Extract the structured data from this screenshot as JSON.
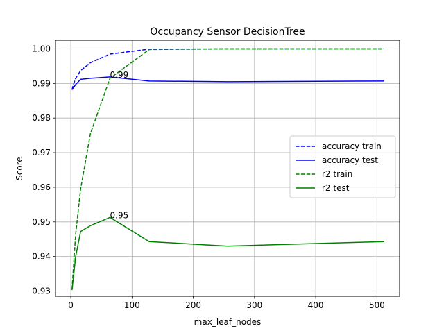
{
  "chart_data": {
    "type": "line",
    "title": "Occupancy Sensor DecisionTree",
    "xlabel": "max_leaf_nodes",
    "ylabel": "Score",
    "xlim": [
      -25,
      537
    ],
    "ylim": [
      0.9285,
      1.0025
    ],
    "xticks": [
      0,
      100,
      200,
      300,
      400,
      500
    ],
    "xtick_labels": [
      "0",
      "100",
      "200",
      "300",
      "400",
      "500"
    ],
    "yticks": [
      0.93,
      0.94,
      0.95,
      0.96,
      0.97,
      0.98,
      0.99,
      1.0
    ],
    "ytick_labels": [
      "0.93",
      "0.94",
      "0.95",
      "0.96",
      "0.97",
      "0.98",
      "0.99",
      "1.00"
    ],
    "grid": true,
    "legend_position": "center-right",
    "series": [
      {
        "name": "accuracy train",
        "color": "#0000ff",
        "dash": "dashed",
        "x": [
          2,
          4,
          8,
          16,
          32,
          64,
          128,
          256,
          512
        ],
        "y": [
          0.9882,
          0.9895,
          0.9915,
          0.9937,
          0.996,
          0.9985,
          0.9999,
          1.0,
          1.0
        ]
      },
      {
        "name": "accuracy test",
        "color": "#0000ff",
        "dash": "solid",
        "x": [
          2,
          4,
          8,
          16,
          32,
          64,
          128,
          256,
          512
        ],
        "y": [
          0.9882,
          0.9887,
          0.9897,
          0.9912,
          0.9915,
          0.9919,
          0.9907,
          0.9905,
          0.9907
        ]
      },
      {
        "name": "r2 train",
        "color": "#008000",
        "dash": "dashed",
        "x": [
          2,
          4,
          8,
          16,
          32,
          64,
          128,
          256,
          512
        ],
        "y": [
          0.9305,
          0.936,
          0.9465,
          0.9595,
          0.9755,
          0.9915,
          0.9998,
          1.0,
          1.0
        ]
      },
      {
        "name": "r2 test",
        "color": "#008000",
        "dash": "solid",
        "x": [
          2,
          4,
          8,
          16,
          32,
          64,
          128,
          256,
          512
        ],
        "y": [
          0.9303,
          0.9335,
          0.94,
          0.9472,
          0.9489,
          0.9513,
          0.9443,
          0.943,
          0.9443
        ]
      }
    ],
    "annotations": [
      {
        "text": "0.99",
        "x": 64,
        "y": 0.9919
      },
      {
        "text": "0.95",
        "x": 64,
        "y": 0.9513
      }
    ]
  }
}
